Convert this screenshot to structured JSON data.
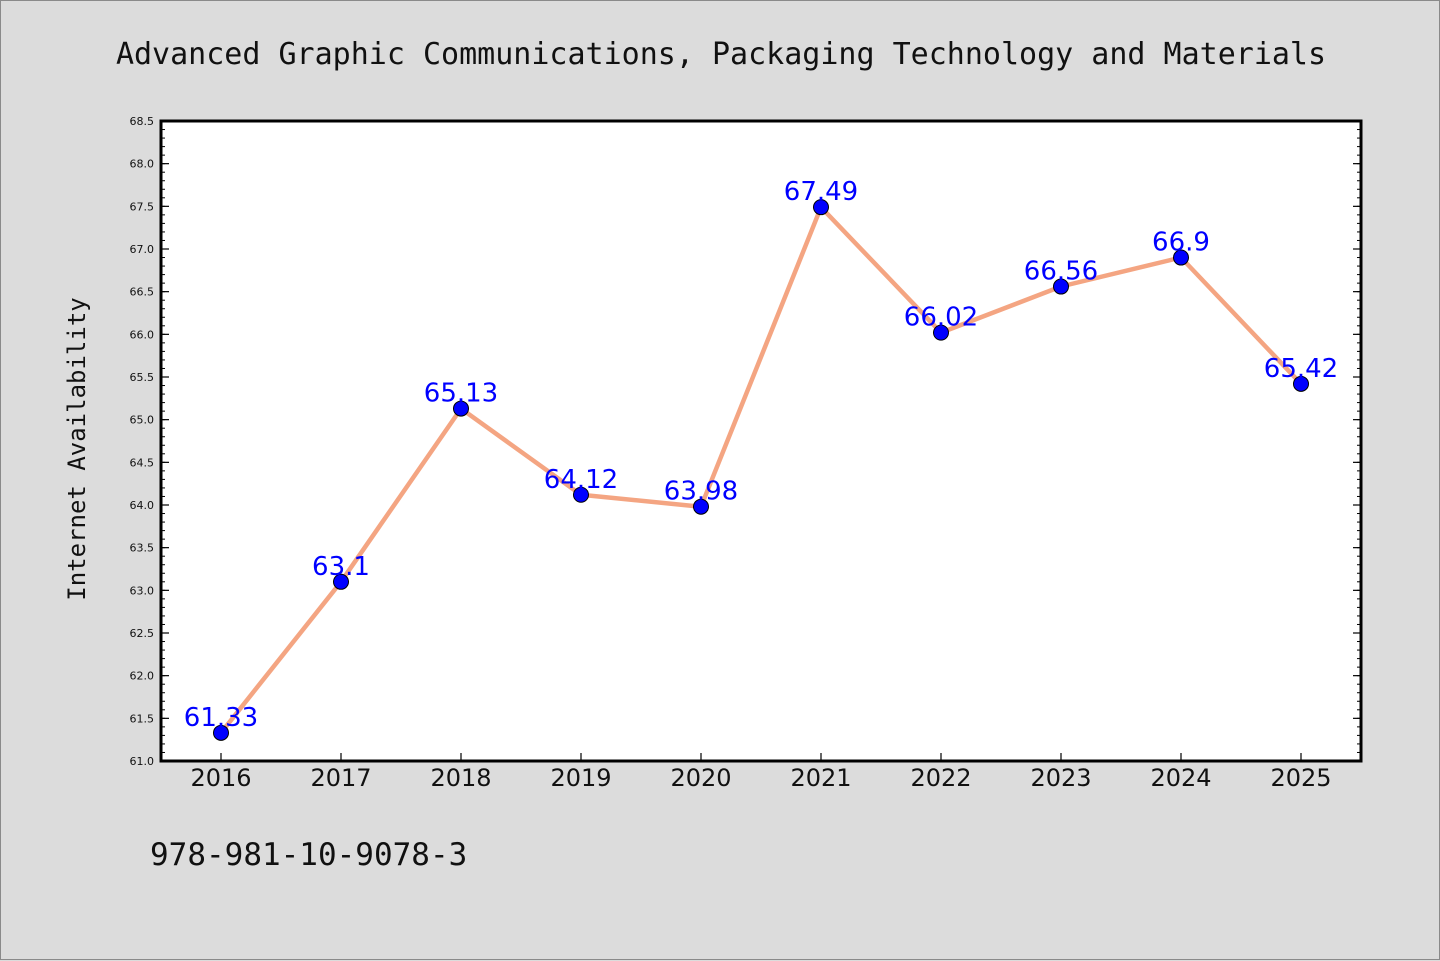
{
  "chart_data": {
    "type": "line",
    "title": "Advanced Graphic Communications, Packaging Technology and Materials",
    "xlabel": "",
    "ylabel": "Internet Availability",
    "categories": [
      "2016",
      "2017",
      "2018",
      "2019",
      "2020",
      "2021",
      "2022",
      "2023",
      "2024",
      "2025"
    ],
    "series": [
      {
        "values": [
          61.33,
          63.1,
          65.13,
          64.12,
          63.98,
          67.49,
          66.02,
          66.56,
          66.9,
          65.42
        ],
        "data_labels": [
          "61.33",
          "63.1",
          "65.13",
          "64.12",
          "63.98",
          "67.49",
          "66.02",
          "66.56",
          "66.9",
          "65.42"
        ]
      }
    ],
    "ylim": [
      61.0,
      68.5
    ],
    "yticks": [
      61.0,
      61.5,
      62.0,
      62.5,
      63.0,
      63.5,
      64.0,
      64.5,
      65.0,
      65.5,
      66.0,
      66.5,
      67.0,
      67.5,
      68.0,
      68.5
    ],
    "ytick_labels": [
      "61.0",
      "61.5",
      "62.0",
      "62.5",
      "63.0",
      "63.5",
      "64.0",
      "64.5",
      "65.0",
      "65.5",
      "66.0",
      "66.5",
      "67.0",
      "67.5",
      "68.0",
      "68.5"
    ],
    "grid": false,
    "legend": "none",
    "colors": {
      "line": "#f4a582",
      "marker": "#0000ff",
      "data_label": "#0000ff",
      "background": "#dcdcdc",
      "plot_background": "#ffffff"
    }
  },
  "footnote": "978-981-10-9078-3"
}
